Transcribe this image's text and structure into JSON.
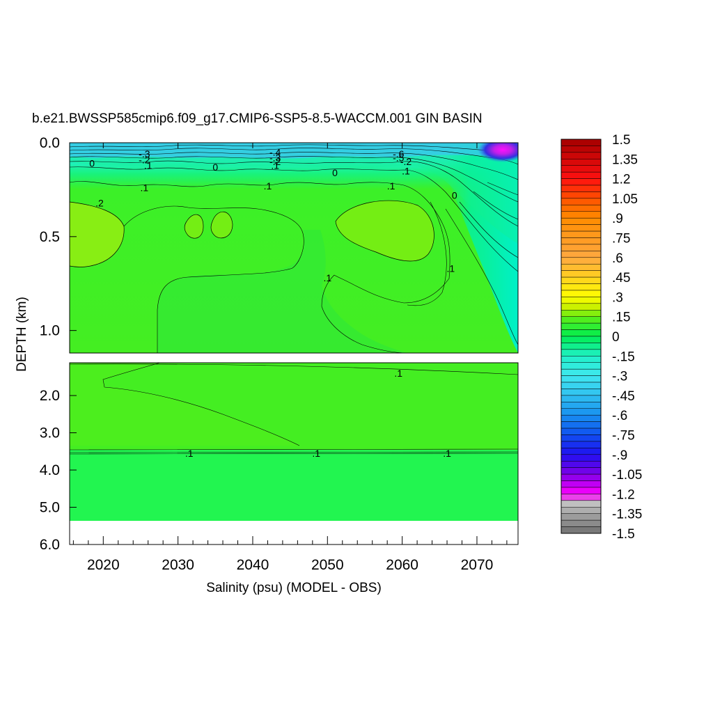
{
  "chart_data": {
    "type": "heatmap",
    "title": "b.e21.BWSSP585cmip6.f09_g17.CMIP6-SSP5-8.5-WACCM.001 GIN BASIN",
    "xlabel": "Salinity (psu) (MODEL - OBS)",
    "ylabel": "DEPTH (km)",
    "xlim": [
      2015.5,
      2075.5
    ],
    "x_ticks": [
      "2020",
      "2030",
      "2040",
      "2050",
      "2060",
      "2070"
    ],
    "x_tick_values": [
      2020,
      2030,
      2040,
      2050,
      2060,
      2070
    ],
    "upper_panel": {
      "ylim": [
        0.0,
        1.12
      ],
      "y_ticks": [
        "0.0",
        "0.5",
        "1.0"
      ],
      "y_tick_values": [
        0.0,
        0.5,
        1.0
      ]
    },
    "lower_panel": {
      "ylim": [
        1.12,
        6.0
      ],
      "y_ticks": [
        "2.0",
        "3.0",
        "4.0",
        "5.0",
        "6.0"
      ],
      "y_tick_values": [
        2.0,
        3.0,
        4.0,
        5.0,
        6.0
      ]
    },
    "colorbar": {
      "min": -1.5,
      "max": 1.5,
      "labels": [
        "1.5",
        "1.35",
        "1.2",
        "1.05",
        ".9",
        ".75",
        ".6",
        ".45",
        ".3",
        ".15",
        "0",
        "-.15",
        "-.3",
        "-.45",
        "-.6",
        "-.75",
        "-.9",
        "-1.05",
        "-1.2",
        "-1.35",
        "-1.5"
      ],
      "label_values": [
        1.5,
        1.35,
        1.2,
        1.05,
        0.9,
        0.75,
        0.6,
        0.45,
        0.3,
        0.15,
        0,
        -0.15,
        -0.3,
        -0.45,
        -0.6,
        -0.75,
        -0.9,
        -1.05,
        -1.2,
        -1.35,
        -1.5
      ]
    },
    "contour_labels": [
      {
        "text": "0",
        "x": 2018.5,
        "y": 0.11
      },
      {
        "text": "0",
        "x": 2035,
        "y": 0.13
      },
      {
        "text": "0",
        "x": 2051,
        "y": 0.16
      },
      {
        "text": "0",
        "x": 2067,
        "y": 0.28
      },
      {
        "text": ".1",
        "x": 2026,
        "y": 0.12
      },
      {
        "text": ".1",
        "x": 2043,
        "y": 0.12
      },
      {
        "text": ".1",
        "x": 2060.5,
        "y": 0.15
      },
      {
        "text": ".1",
        "x": 2025.5,
        "y": 0.24
      },
      {
        "text": ".1",
        "x": 2042,
        "y": 0.23
      },
      {
        "text": ".1",
        "x": 2058.5,
        "y": 0.23
      },
      {
        "text": ".1",
        "x": 2050,
        "y": 0.72
      },
      {
        "text": ".1",
        "x": 2066.5,
        "y": 0.67
      },
      {
        "text": ".2",
        "x": 2019.5,
        "y": 0.32
      },
      {
        "text": "-.3",
        "x": 2025.5,
        "y": 0.06
      },
      {
        "text": "-.2",
        "x": 2025.5,
        "y": 0.09
      },
      {
        "text": "-.4",
        "x": 2043,
        "y": 0.05
      },
      {
        "text": "-.3",
        "x": 2043,
        "y": 0.08
      },
      {
        "text": "-.2",
        "x": 2043,
        "y": 0.1
      },
      {
        "text": "-.6",
        "x": 2059.5,
        "y": 0.06
      },
      {
        "text": "-.5",
        "x": 2059.5,
        "y": 0.08
      },
      {
        "text": "-.2",
        "x": 2060.5,
        "y": 0.1
      },
      {
        "text": ".1",
        "x": 2059.5,
        "y": 1.4
      },
      {
        "text": ".1",
        "x": 2031.5,
        "y": 3.55
      },
      {
        "text": ".1",
        "x": 2048.5,
        "y": 3.55
      },
      {
        "text": ".1",
        "x": 2066,
        "y": 3.55
      }
    ]
  }
}
